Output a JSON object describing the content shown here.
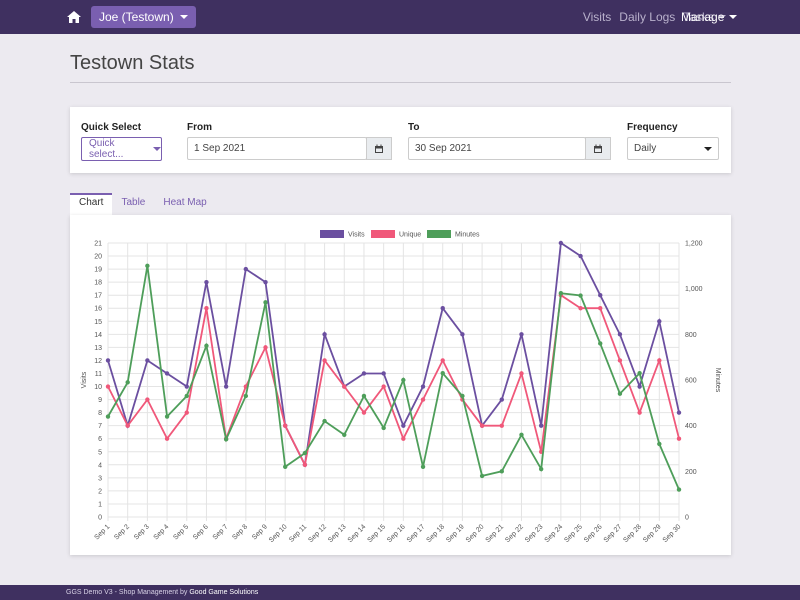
{
  "nav": {
    "user": "Joe (Testown)",
    "links": [
      "Visits",
      "Daily Logs",
      "Tasks"
    ],
    "manage": "Manage"
  },
  "page": {
    "title": "Testown Stats"
  },
  "filters": {
    "quick_label": "Quick Select",
    "quick_value": "Quick select...",
    "from_label": "From",
    "from_value": "1 Sep 2021",
    "to_label": "To",
    "to_value": "30 Sep 2021",
    "freq_label": "Frequency",
    "freq_value": "Daily"
  },
  "tabs": [
    "Chart",
    "Table",
    "Heat Map"
  ],
  "colors": {
    "visits": "#6b4fa0",
    "unique": "#f0587a",
    "minutes": "#4e9e5a",
    "brand": "#3f3060",
    "accent": "#7a5fb0"
  },
  "chart_data": {
    "type": "line",
    "categories": [
      "Sep 1",
      "Sep 2",
      "Sep 3",
      "Sep 4",
      "Sep 5",
      "Sep 6",
      "Sep 7",
      "Sep 8",
      "Sep 9",
      "Sep 10",
      "Sep 11",
      "Sep 12",
      "Sep 13",
      "Sep 14",
      "Sep 15",
      "Sep 16",
      "Sep 17",
      "Sep 18",
      "Sep 19",
      "Sep 20",
      "Sep 21",
      "Sep 22",
      "Sep 23",
      "Sep 24",
      "Sep 25",
      "Sep 26",
      "Sep 27",
      "Sep 28",
      "Sep 29",
      "Sep 30"
    ],
    "series": [
      {
        "name": "Visits",
        "axis": "left",
        "values": [
          12,
          7,
          12,
          11,
          10,
          18,
          10,
          19,
          18,
          7,
          4,
          14,
          10,
          11,
          11,
          7,
          10,
          16,
          14,
          7,
          9,
          14,
          7,
          21,
          20,
          17,
          14,
          10,
          15,
          8
        ]
      },
      {
        "name": "Unique",
        "axis": "left",
        "values": [
          10,
          7,
          9,
          6,
          8,
          16,
          6,
          10,
          13,
          7,
          4,
          12,
          10,
          8,
          10,
          6,
          9,
          12,
          9,
          7,
          7,
          11,
          5,
          17,
          16,
          16,
          12,
          8,
          12,
          6
        ]
      },
      {
        "name": "Minutes",
        "axis": "right",
        "values": [
          440,
          590,
          1100,
          440,
          530,
          750,
          340,
          530,
          940,
          220,
          280,
          420,
          360,
          530,
          390,
          600,
          220,
          630,
          530,
          180,
          200,
          360,
          210,
          980,
          970,
          760,
          540,
          630,
          320,
          120
        ]
      }
    ],
    "ylabel": "Visits",
    "y2label": "Minutes",
    "ylim": [
      0,
      21
    ],
    "y2lim": [
      0,
      1200
    ],
    "y2ticks": [
      "0",
      "200",
      "400",
      "600",
      "800",
      "1,000",
      "1,200"
    ],
    "legend": "top",
    "grid": true
  },
  "footer": {
    "text": "GGS Demo V3 - Shop Management by ",
    "brand": "Good Game Solutions"
  }
}
